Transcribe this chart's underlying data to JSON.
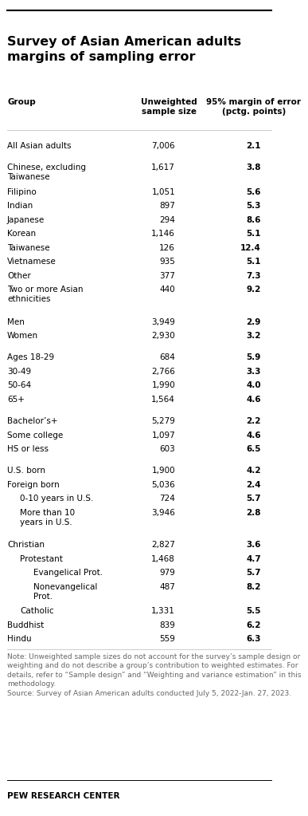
{
  "title": "Survey of Asian American adults\nmargins of sampling error",
  "col1_header": "Group",
  "col2_header": "Unweighted\nsample size",
  "col3_header": "95% margin of error\n(pctg. points)",
  "rows": [
    {
      "label": "All Asian adults",
      "indent": 0,
      "sample": "7,006",
      "margin": "2.1",
      "label_bold": false,
      "margin_bold": true,
      "gap_before": false
    },
    {
      "label": "",
      "indent": 0,
      "sample": "",
      "margin": "",
      "label_bold": false,
      "margin_bold": false,
      "gap_before": false
    },
    {
      "label": "Chinese, excluding\nTaiwanese",
      "indent": 0,
      "sample": "1,617",
      "margin": "3.8",
      "label_bold": false,
      "margin_bold": true,
      "gap_before": false
    },
    {
      "label": "Filipino",
      "indent": 0,
      "sample": "1,051",
      "margin": "5.6",
      "label_bold": false,
      "margin_bold": true,
      "gap_before": false
    },
    {
      "label": "Indian",
      "indent": 0,
      "sample": "897",
      "margin": "5.3",
      "label_bold": false,
      "margin_bold": true,
      "gap_before": false
    },
    {
      "label": "Japanese",
      "indent": 0,
      "sample": "294",
      "margin": "8.6",
      "label_bold": false,
      "margin_bold": true,
      "gap_before": false
    },
    {
      "label": "Korean",
      "indent": 0,
      "sample": "1,146",
      "margin": "5.1",
      "label_bold": false,
      "margin_bold": true,
      "gap_before": false
    },
    {
      "label": "Taiwanese",
      "indent": 0,
      "sample": "126",
      "margin": "12.4",
      "label_bold": false,
      "margin_bold": true,
      "gap_before": false
    },
    {
      "label": "Vietnamese",
      "indent": 0,
      "sample": "935",
      "margin": "5.1",
      "label_bold": false,
      "margin_bold": true,
      "gap_before": false
    },
    {
      "label": "Other",
      "indent": 0,
      "sample": "377",
      "margin": "7.3",
      "label_bold": false,
      "margin_bold": true,
      "gap_before": false
    },
    {
      "label": "Two or more Asian\nethnicities",
      "indent": 0,
      "sample": "440",
      "margin": "9.2",
      "label_bold": false,
      "margin_bold": true,
      "gap_before": false
    },
    {
      "label": "",
      "indent": 0,
      "sample": "",
      "margin": "",
      "label_bold": false,
      "margin_bold": false,
      "gap_before": false
    },
    {
      "label": "Men",
      "indent": 0,
      "sample": "3,949",
      "margin": "2.9",
      "label_bold": false,
      "margin_bold": true,
      "gap_before": false
    },
    {
      "label": "Women",
      "indent": 0,
      "sample": "2,930",
      "margin": "3.2",
      "label_bold": false,
      "margin_bold": true,
      "gap_before": false
    },
    {
      "label": "",
      "indent": 0,
      "sample": "",
      "margin": "",
      "label_bold": false,
      "margin_bold": false,
      "gap_before": false
    },
    {
      "label": "Ages 18-29",
      "indent": 0,
      "sample": "684",
      "margin": "5.9",
      "label_bold": false,
      "margin_bold": true,
      "gap_before": false
    },
    {
      "label": "30-49",
      "indent": 0,
      "sample": "2,766",
      "margin": "3.3",
      "label_bold": false,
      "margin_bold": true,
      "gap_before": false
    },
    {
      "label": "50-64",
      "indent": 0,
      "sample": "1,990",
      "margin": "4.0",
      "label_bold": false,
      "margin_bold": true,
      "gap_before": false
    },
    {
      "label": "65+",
      "indent": 0,
      "sample": "1,564",
      "margin": "4.6",
      "label_bold": false,
      "margin_bold": true,
      "gap_before": false
    },
    {
      "label": "",
      "indent": 0,
      "sample": "",
      "margin": "",
      "label_bold": false,
      "margin_bold": false,
      "gap_before": false
    },
    {
      "label": "Bachelor’s+",
      "indent": 0,
      "sample": "5,279",
      "margin": "2.2",
      "label_bold": false,
      "margin_bold": true,
      "gap_before": false
    },
    {
      "label": "Some college",
      "indent": 0,
      "sample": "1,097",
      "margin": "4.6",
      "label_bold": false,
      "margin_bold": true,
      "gap_before": false
    },
    {
      "label": "HS or less",
      "indent": 0,
      "sample": "603",
      "margin": "6.5",
      "label_bold": false,
      "margin_bold": true,
      "gap_before": false
    },
    {
      "label": "",
      "indent": 0,
      "sample": "",
      "margin": "",
      "label_bold": false,
      "margin_bold": false,
      "gap_before": false
    },
    {
      "label": "U.S. born",
      "indent": 0,
      "sample": "1,900",
      "margin": "4.2",
      "label_bold": false,
      "margin_bold": true,
      "gap_before": false
    },
    {
      "label": "Foreign born",
      "indent": 0,
      "sample": "5,036",
      "margin": "2.4",
      "label_bold": false,
      "margin_bold": true,
      "gap_before": false
    },
    {
      "label": "0-10 years in U.S.",
      "indent": 1,
      "sample": "724",
      "margin": "5.7",
      "label_bold": false,
      "margin_bold": true,
      "gap_before": false
    },
    {
      "label": "More than 10\nyears in U.S.",
      "indent": 1,
      "sample": "3,946",
      "margin": "2.8",
      "label_bold": false,
      "margin_bold": true,
      "gap_before": false
    },
    {
      "label": "",
      "indent": 0,
      "sample": "",
      "margin": "",
      "label_bold": false,
      "margin_bold": false,
      "gap_before": false
    },
    {
      "label": "Christian",
      "indent": 0,
      "sample": "2,827",
      "margin": "3.6",
      "label_bold": false,
      "margin_bold": true,
      "gap_before": false
    },
    {
      "label": "Protestant",
      "indent": 1,
      "sample": "1,468",
      "margin": "4.7",
      "label_bold": false,
      "margin_bold": true,
      "gap_before": false
    },
    {
      "label": "Evangelical Prot.",
      "indent": 2,
      "sample": "979",
      "margin": "5.7",
      "label_bold": false,
      "margin_bold": true,
      "gap_before": false
    },
    {
      "label": "Nonevangelical\nProt.",
      "indent": 2,
      "sample": "487",
      "margin": "8.2",
      "label_bold": false,
      "margin_bold": true,
      "gap_before": false
    },
    {
      "label": "Catholic",
      "indent": 1,
      "sample": "1,331",
      "margin": "5.5",
      "label_bold": false,
      "margin_bold": true,
      "gap_before": false
    },
    {
      "label": "Buddhist",
      "indent": 0,
      "sample": "839",
      "margin": "6.2",
      "label_bold": false,
      "margin_bold": true,
      "gap_before": false
    },
    {
      "label": "Hindu",
      "indent": 0,
      "sample": "559",
      "margin": "6.3",
      "label_bold": false,
      "margin_bold": true,
      "gap_before": false
    }
  ],
  "note_text": "Note: Unweighted sample sizes do not account for the survey’s sample design or weighting and do not describe a group’s contribution to weighted estimates. For details, refer to “Sample design” and “Weighting and variance estimation” in this methodology.\nSource: Survey of Asian American adults conducted July 5, 2022-Jan. 27, 2023.",
  "footer": "PEW RESEARCH CENTER",
  "bg_color": "#ffffff",
  "text_color": "#000000",
  "note_color": "#666666",
  "top_line_color": "#000000"
}
